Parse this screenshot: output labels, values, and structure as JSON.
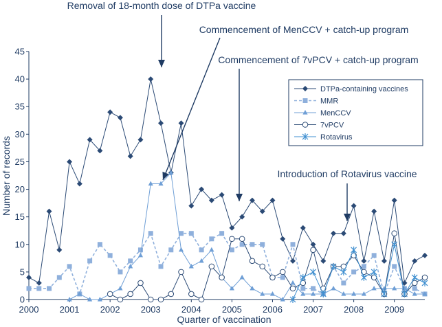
{
  "chart_data": {
    "type": "line",
    "xlabel": "Quarter of vaccination",
    "ylabel": "Number of records",
    "ylim": [
      0,
      45
    ],
    "yticks": [
      0,
      5,
      10,
      15,
      20,
      25,
      30,
      35,
      40,
      45
    ],
    "xlim": [
      2000,
      2009.75
    ],
    "xticks": [
      2000,
      2001,
      2002,
      2003,
      2004,
      2005,
      2006,
      2007,
      2008,
      2009
    ],
    "x": [
      2000.0,
      2000.25,
      2000.5,
      2000.75,
      2001.0,
      2001.25,
      2001.5,
      2001.75,
      2002.0,
      2002.25,
      2002.5,
      2002.75,
      2003.0,
      2003.25,
      2003.5,
      2003.75,
      2004.0,
      2004.25,
      2004.5,
      2004.75,
      2005.0,
      2005.25,
      2005.5,
      2005.75,
      2006.0,
      2006.25,
      2006.5,
      2006.75,
      2007.0,
      2007.25,
      2007.5,
      2007.75,
      2008.0,
      2008.25,
      2008.5,
      2008.75,
      2009.0,
      2009.25,
      2009.5,
      2009.75
    ],
    "series": [
      {
        "name": "DTPa-containing vaccines",
        "color": "#2b4a75",
        "marker": "diamond",
        "dash": "solid",
        "values": [
          4,
          3,
          16,
          9,
          25,
          21,
          29,
          27,
          34,
          33,
          26,
          29,
          40,
          32,
          23,
          32,
          17,
          20,
          18,
          19,
          13,
          15,
          18,
          16,
          18,
          11,
          7,
          13,
          10,
          7,
          12,
          12,
          17,
          7,
          16,
          7,
          18,
          3,
          7,
          8
        ]
      },
      {
        "name": "MMR",
        "color": "#8fb0dc",
        "marker": "square",
        "dash": "dashed",
        "values": [
          2,
          2,
          2,
          4,
          6,
          1,
          7,
          10,
          8,
          5,
          7,
          9,
          12,
          6,
          9,
          12,
          12,
          9,
          11,
          12,
          9,
          10,
          10,
          10,
          4,
          4,
          10,
          2,
          2,
          1,
          6,
          3,
          5,
          6,
          8,
          1,
          6,
          2,
          2,
          1
        ]
      },
      {
        "name": "MenCCV",
        "color": "#6f9fd6",
        "marker": "triangle",
        "dash": "solid",
        "values": [
          null,
          null,
          null,
          null,
          0,
          1,
          0,
          0,
          1,
          2,
          6,
          8,
          21,
          21,
          23,
          9,
          6,
          7,
          9,
          4,
          2,
          4,
          2,
          1,
          1,
          0,
          3,
          1,
          1,
          1,
          2,
          1,
          1,
          1,
          2,
          2,
          2,
          2,
          1,
          1
        ]
      },
      {
        "name": "7vPCV",
        "color": "#2b4a75",
        "marker": "circle",
        "dash": "solid",
        "values": [
          null,
          null,
          null,
          null,
          null,
          null,
          null,
          null,
          1,
          0,
          1,
          3,
          0,
          0,
          1,
          5,
          1,
          0,
          6,
          4,
          11,
          11,
          7,
          6,
          4,
          5,
          2,
          3,
          9,
          2,
          6,
          6,
          8,
          5,
          4,
          1,
          12,
          1,
          3,
          4
        ]
      },
      {
        "name": "Rotavirus",
        "color": "#3f8fd0",
        "marker": "star",
        "dash": "solid",
        "values": [
          null,
          null,
          null,
          null,
          null,
          null,
          null,
          null,
          null,
          null,
          null,
          null,
          null,
          null,
          null,
          null,
          null,
          null,
          null,
          null,
          null,
          null,
          null,
          null,
          null,
          null,
          0,
          4,
          5,
          1,
          6,
          5,
          9,
          4,
          5,
          1,
          10,
          1,
          4,
          3
        ]
      }
    ],
    "legend_position": "right",
    "annotations": [
      {
        "text": "Removal of 18-month dose of DTPa vaccine",
        "x": 2003.0,
        "y": 40
      },
      {
        "text": "Commencement of MenCCV + catch-up program",
        "x": 2003.0,
        "y": 21
      },
      {
        "text": "Commencement of 7vPCV + catch-up program",
        "x": 2005.0,
        "y": 13
      },
      {
        "text": "Introduction of Rotavirus vaccine",
        "x": 2007.5,
        "y": 12
      }
    ]
  }
}
